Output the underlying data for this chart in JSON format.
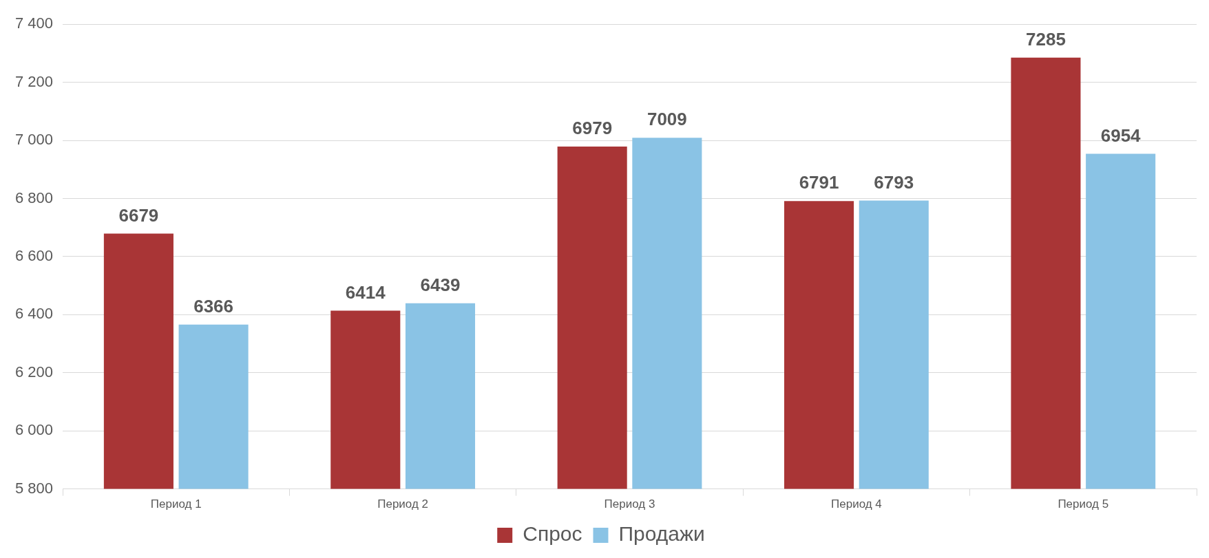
{
  "chart_data": {
    "type": "bar",
    "categories": [
      "Период 1",
      "Период 2",
      "Период 3",
      "Период 4",
      "Период 5"
    ],
    "series": [
      {
        "name": "Спрос",
        "color": "#a93536",
        "values": [
          6679,
          6414,
          6979,
          6791,
          7285
        ]
      },
      {
        "name": "Продажи",
        "color": "#8ac3e5",
        "values": [
          6366,
          6439,
          7009,
          6793,
          6954
        ]
      }
    ],
    "ylim": [
      5800,
      7400
    ],
    "yticks": [
      {
        "value": 5800,
        "label": "5 800"
      },
      {
        "value": 6000,
        "label": "6 000"
      },
      {
        "value": 6200,
        "label": "6 200"
      },
      {
        "value": 6400,
        "label": "6 400"
      },
      {
        "value": 6600,
        "label": "6 600"
      },
      {
        "value": 6800,
        "label": "6 800"
      },
      {
        "value": 7000,
        "label": "7 000"
      },
      {
        "value": 7200,
        "label": "7 200"
      },
      {
        "value": 7400,
        "label": "7 400"
      }
    ],
    "grid": "y",
    "legend": "bottom",
    "data_labels": true
  }
}
